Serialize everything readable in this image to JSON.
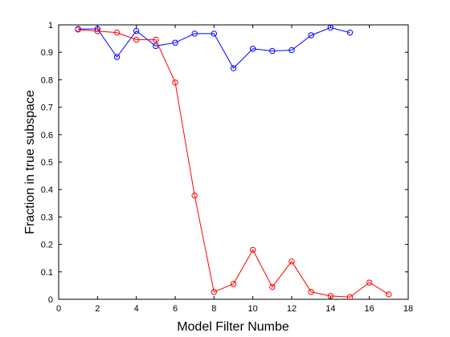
{
  "chart_data": {
    "type": "line",
    "xlabel": "Model Filter Numbe",
    "ylabel": "Fraction in true subspace",
    "xlim": [
      0,
      18
    ],
    "ylim": [
      0,
      1
    ],
    "xticks": [
      0,
      2,
      4,
      6,
      8,
      10,
      12,
      14,
      16,
      18
    ],
    "yticks": [
      0,
      0.1,
      0.2,
      0.3,
      0.4,
      0.5,
      0.6,
      0.7,
      0.8,
      0.9,
      1
    ],
    "xtick_labels": [
      "0",
      "2",
      "4",
      "6",
      "8",
      "10",
      "12",
      "14",
      "16",
      "18"
    ],
    "ytick_labels": [
      "0",
      "0.1",
      "0.2",
      "0.3",
      "0.4",
      "0.5",
      "0.6",
      "0.7",
      "0.8",
      "0.9",
      "1"
    ],
    "grid": false,
    "series": [
      {
        "color": "#0000ff",
        "marker": "circle",
        "x": [
          1,
          2,
          3,
          4,
          5,
          6,
          7,
          8,
          9,
          10,
          11,
          12,
          13,
          14,
          15
        ],
        "y": [
          0.985,
          0.985,
          0.883,
          0.978,
          0.923,
          0.935,
          0.968,
          0.968,
          0.842,
          0.913,
          0.905,
          0.908,
          0.962,
          0.99,
          0.972
        ]
      },
      {
        "color": "#ff0000",
        "marker": "circle",
        "x": [
          1,
          2,
          3,
          4,
          5,
          6,
          7,
          8,
          9,
          10,
          11,
          12,
          13,
          14,
          15,
          16,
          17
        ],
        "y": [
          0.983,
          0.977,
          0.972,
          0.946,
          0.946,
          0.79,
          0.378,
          0.027,
          0.056,
          0.18,
          0.045,
          0.138,
          0.027,
          0.012,
          0.008,
          0.061,
          0.018
        ]
      }
    ]
  }
}
